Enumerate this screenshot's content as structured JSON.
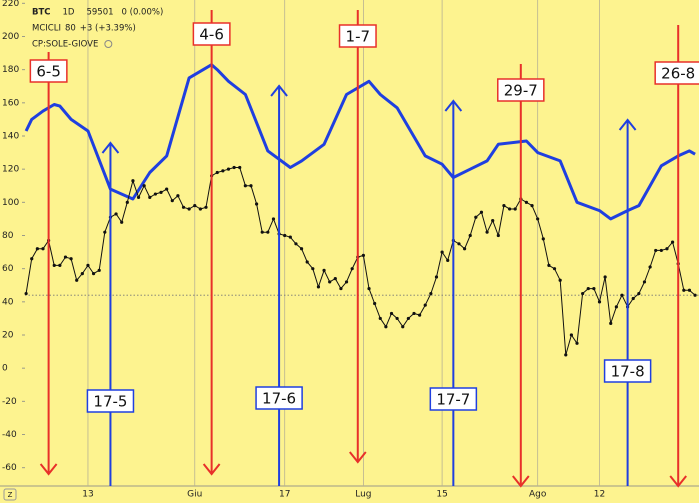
{
  "chart_data": {
    "type": "line",
    "header": [
      {
        "symbol": "BTC",
        "interval": "1D",
        "value": "59501",
        "change": "0 (0.00%)"
      },
      {
        "symbol": "MCICLI",
        "value": "80",
        "change": "+3 (+3.39%)"
      },
      {
        "symbol": "CP:SOLE-GIOVE"
      }
    ],
    "xlim": [
      1.8,
      121.7
    ],
    "xticks": [
      {
        "value": 13,
        "label": "13"
      },
      {
        "value": 32,
        "label": "Giu"
      },
      {
        "value": 48,
        "label": "17"
      },
      {
        "value": 62,
        "label": "Lug"
      },
      {
        "value": 76,
        "label": "15"
      },
      {
        "value": 93,
        "label": "Ago"
      },
      {
        "value": 104,
        "label": "12"
      }
    ],
    "ylim": [
      -62,
      222
    ],
    "yticks": [
      -60,
      -40,
      -20,
      0,
      20,
      40,
      60,
      80,
      100,
      120,
      140,
      160,
      180,
      200,
      220
    ],
    "hline": 44,
    "series": [
      {
        "color": "#1f3fe0",
        "style": "solid",
        "x": [
          2,
          3,
          5,
          7,
          8,
          10,
          13,
          17,
          21,
          24,
          27,
          31,
          35,
          36,
          38,
          41,
          45,
          49,
          51,
          55,
          59,
          63,
          65,
          68,
          73,
          76,
          78,
          81,
          84,
          86,
          91,
          93,
          97,
          100,
          104,
          106,
          109,
          111,
          115,
          118,
          120,
          121
        ],
        "values": [
          143,
          150,
          155,
          159,
          158,
          150,
          143,
          108,
          102,
          118,
          128,
          175,
          183,
          180,
          173,
          165,
          131,
          121,
          125,
          135,
          165,
          173,
          165,
          157,
          128,
          123,
          115,
          120,
          125,
          135,
          137,
          130,
          125,
          100,
          95,
          90,
          95,
          98,
          122,
          128,
          131,
          129
        ]
      },
      {
        "color": "#111111",
        "style": "dotted",
        "x": [
          2,
          3,
          4,
          5,
          6,
          7,
          8,
          9,
          10,
          11,
          12,
          13,
          14,
          15,
          16,
          17,
          18,
          19,
          20,
          21,
          22,
          23,
          24,
          25,
          26,
          27,
          28,
          29,
          30,
          31,
          32,
          33,
          34,
          35,
          36,
          37,
          38,
          39,
          40,
          41,
          42,
          43,
          44,
          45,
          46,
          47,
          48,
          49,
          50,
          51,
          52,
          53,
          54,
          55,
          56,
          57,
          58,
          59,
          60,
          61,
          62,
          63,
          64,
          65,
          66,
          67,
          68,
          69,
          70,
          71,
          72,
          73,
          74,
          75,
          76,
          77,
          78,
          79,
          80,
          81,
          82,
          83,
          84,
          85,
          86,
          87,
          88,
          89,
          90,
          91,
          92,
          93,
          94,
          95,
          96,
          97,
          98,
          99,
          100,
          101,
          102,
          103,
          104,
          105,
          106,
          107,
          108,
          109,
          110,
          111,
          112,
          113,
          114,
          115,
          116,
          117,
          118,
          119,
          120,
          121
        ],
        "values": [
          45,
          66,
          72,
          72,
          77,
          62,
          62,
          67,
          66,
          53,
          57,
          62,
          57,
          59,
          82,
          91,
          93,
          88,
          100,
          113,
          103,
          110,
          103,
          105,
          106,
          108,
          101,
          104,
          97,
          96,
          98,
          96,
          97,
          116,
          118,
          119,
          120,
          121,
          121,
          110,
          110,
          99,
          82,
          82,
          90,
          81,
          80,
          79,
          75,
          72,
          64,
          60,
          49,
          59,
          52,
          54,
          48,
          52,
          60,
          67,
          68,
          48,
          39,
          30,
          25,
          33,
          30,
          25,
          30,
          33,
          32,
          38,
          45,
          55,
          70,
          65,
          77,
          75,
          72,
          80,
          91,
          94,
          82,
          89,
          80,
          98,
          96,
          96,
          102,
          100,
          98,
          90,
          78,
          62,
          60,
          53,
          8,
          20,
          15,
          45,
          48,
          48,
          40,
          55,
          27,
          37,
          44,
          37,
          42,
          45,
          52,
          61,
          71,
          71,
          72,
          76,
          63,
          47,
          47,
          44
        ]
      }
    ],
    "annotations": [
      {
        "label": "6-5",
        "x": 6,
        "direction": "down",
        "color": "#e8302a"
      },
      {
        "label": "4-6",
        "x": 35,
        "direction": "down",
        "color": "#e8302a"
      },
      {
        "label": "1-7",
        "x": 61,
        "direction": "down",
        "color": "#e8302a"
      },
      {
        "label": "29-7",
        "x": 90,
        "direction": "down",
        "color": "#e8302a"
      },
      {
        "label": "26-8",
        "x": 118,
        "direction": "down",
        "color": "#e8302a"
      },
      {
        "label": "17-5",
        "x": 17,
        "direction": "up",
        "color": "#1f3fe0"
      },
      {
        "label": "17-6",
        "x": 47,
        "direction": "up",
        "color": "#1f3fe0"
      },
      {
        "label": "17-7",
        "x": 78,
        "direction": "up",
        "color": "#1f3fe0"
      },
      {
        "label": "17-8",
        "x": 109,
        "direction": "up",
        "color": "#1f3fe0"
      }
    ]
  }
}
